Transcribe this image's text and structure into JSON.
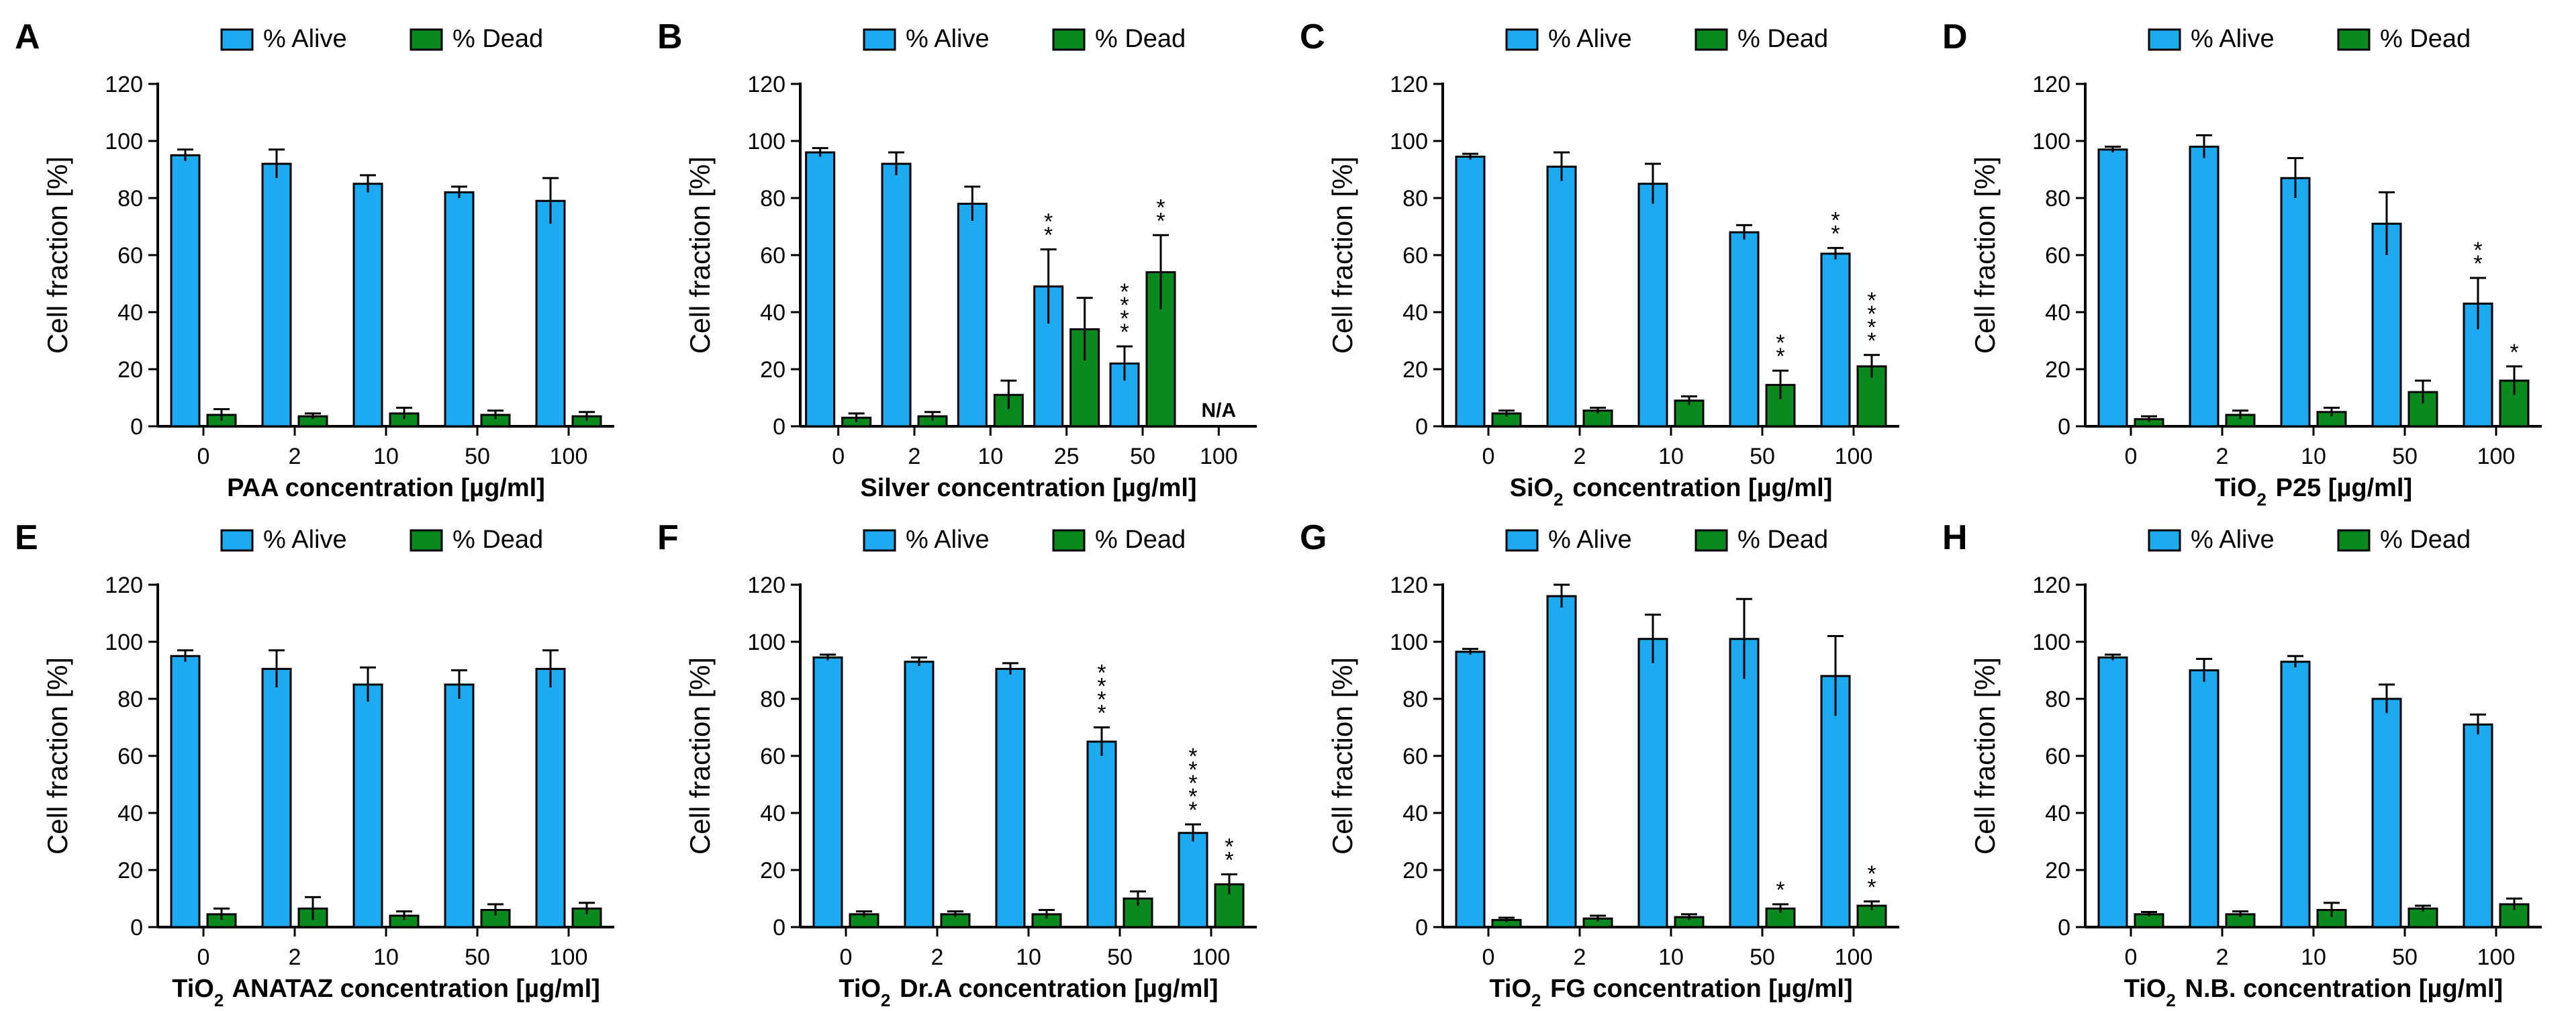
{
  "colors": {
    "alive": "#1EAAF1",
    "dead": "#0A8A1E",
    "stroke": "#000000"
  },
  "legend": {
    "alive": "% Alive",
    "dead": "% Dead"
  },
  "chart_data": [
    {
      "type": "bar",
      "letter": "A",
      "ylabel": "Cell fraction [%]",
      "xlabel": "PAA concentration [µg/ml]",
      "ylim": [
        0,
        120
      ],
      "yticks": [
        0,
        20,
        40,
        60,
        80,
        100,
        120
      ],
      "categories": [
        "0",
        "2",
        "10",
        "50",
        "100"
      ],
      "series": [
        {
          "name": "% Alive",
          "values": [
            95,
            92,
            85,
            82,
            79
          ],
          "errors": [
            2,
            5,
            3,
            2,
            8
          ]
        },
        {
          "name": "% Dead",
          "values": [
            4,
            3.5,
            4.5,
            4,
            3.5
          ],
          "errors": [
            2,
            1,
            2,
            1.5,
            1.5
          ]
        }
      ],
      "significance": [
        [
          "",
          "",
          "",
          "",
          ""
        ],
        [
          "",
          "",
          "",
          "",
          ""
        ]
      ],
      "annotations": []
    },
    {
      "type": "bar",
      "letter": "B",
      "ylabel": "Cell fraction [%]",
      "xlabel": "Silver concentration [µg/ml]",
      "ylim": [
        0,
        120
      ],
      "yticks": [
        0,
        20,
        40,
        60,
        80,
        100,
        120
      ],
      "categories": [
        "0",
        "2",
        "10",
        "25",
        "50",
        "100"
      ],
      "series": [
        {
          "name": "% Alive",
          "values": [
            96,
            92,
            78,
            49,
            22,
            null
          ],
          "errors": [
            1.5,
            4,
            6,
            13,
            6,
            null
          ]
        },
        {
          "name": "% Dead",
          "values": [
            3,
            3.5,
            11,
            34,
            54,
            null
          ],
          "errors": [
            1.5,
            1.5,
            5,
            11,
            13,
            null
          ]
        }
      ],
      "significance": [
        [
          "",
          "",
          "",
          "**",
          "****",
          ""
        ],
        [
          "",
          "",
          "",
          "",
          "**",
          ""
        ]
      ],
      "annotations": [
        {
          "category": "100",
          "text": "N/A"
        }
      ]
    },
    {
      "type": "bar",
      "letter": "C",
      "ylabel": "Cell fraction [%]",
      "xlabel": "SiO₂ concentration [µg/ml]",
      "ylim": [
        0,
        120
      ],
      "yticks": [
        0,
        20,
        40,
        60,
        80,
        100,
        120
      ],
      "categories": [
        "0",
        "2",
        "10",
        "50",
        "100"
      ],
      "series": [
        {
          "name": "% Alive",
          "values": [
            94.5,
            91,
            85,
            68,
            60.5
          ],
          "errors": [
            1,
            5,
            7,
            2.5,
            2
          ]
        },
        {
          "name": "% Dead",
          "values": [
            4.5,
            5.5,
            9,
            14.5,
            21
          ],
          "errors": [
            1,
            1,
            1.5,
            5,
            4
          ]
        }
      ],
      "significance": [
        [
          "",
          "",
          "",
          "",
          "**"
        ],
        [
          "",
          "",
          "",
          "**",
          "****"
        ]
      ],
      "annotations": []
    },
    {
      "type": "bar",
      "letter": "D",
      "ylabel": "Cell fraction [%]",
      "xlabel": "TiO₂ P25 [µg/ml]",
      "ylim": [
        0,
        120
      ],
      "yticks": [
        0,
        20,
        40,
        60,
        80,
        100,
        120
      ],
      "categories": [
        "0",
        "2",
        "10",
        "50",
        "100"
      ],
      "series": [
        {
          "name": "% Alive",
          "values": [
            97,
            98,
            87,
            71,
            43
          ],
          "errors": [
            1,
            4,
            7,
            11,
            9
          ]
        },
        {
          "name": "% Dead",
          "values": [
            2.5,
            4,
            5,
            12,
            16
          ],
          "errors": [
            1,
            1.5,
            1.5,
            4,
            5
          ]
        }
      ],
      "significance": [
        [
          "",
          "",
          "",
          "",
          "**"
        ],
        [
          "",
          "",
          "",
          "",
          "*"
        ]
      ],
      "annotations": []
    },
    {
      "type": "bar",
      "letter": "E",
      "ylabel": "Cell fraction [%]",
      "xlabel": "TiO₂ ANATAZ concentration [µg/ml]",
      "ylim": [
        0,
        120
      ],
      "yticks": [
        0,
        20,
        40,
        60,
        80,
        100,
        120
      ],
      "categories": [
        "0",
        "2",
        "10",
        "50",
        "100"
      ],
      "series": [
        {
          "name": "% Alive",
          "values": [
            95,
            90.5,
            85,
            85,
            90.5
          ],
          "errors": [
            2,
            6.5,
            6,
            5,
            6.5
          ]
        },
        {
          "name": "% Dead",
          "values": [
            4.5,
            6.5,
            4,
            6,
            6.5
          ],
          "errors": [
            2,
            4,
            1.5,
            2,
            2
          ]
        }
      ],
      "significance": [
        [
          "",
          "",
          "",
          "",
          ""
        ],
        [
          "",
          "",
          "",
          "",
          ""
        ]
      ],
      "annotations": []
    },
    {
      "type": "bar",
      "letter": "F",
      "ylabel": "Cell fraction [%]",
      "xlabel": "TiO₂ Dr.A concentration [µg/ml]",
      "ylim": [
        0,
        120
      ],
      "yticks": [
        0,
        20,
        40,
        60,
        80,
        100,
        120
      ],
      "categories": [
        "0",
        "2",
        "10",
        "50",
        "100"
      ],
      "series": [
        {
          "name": "% Alive",
          "values": [
            94.5,
            93,
            90.5,
            65,
            33
          ],
          "errors": [
            1,
            1.5,
            2,
            5,
            3
          ]
        },
        {
          "name": "% Dead",
          "values": [
            4.5,
            4.5,
            4.5,
            10,
            15
          ],
          "errors": [
            1,
            1,
            1.5,
            2.5,
            3.5
          ]
        }
      ],
      "significance": [
        [
          "",
          "",
          "",
          "****",
          "*****"
        ],
        [
          "",
          "",
          "",
          "",
          "**"
        ]
      ],
      "annotations": []
    },
    {
      "type": "bar",
      "letter": "G",
      "ylabel": "Cell fraction [%]",
      "xlabel": "TiO₂ FG concentration [µg/ml]",
      "ylim": [
        0,
        120
      ],
      "yticks": [
        0,
        20,
        40,
        60,
        80,
        100,
        120
      ],
      "categories": [
        "0",
        "2",
        "10",
        "50",
        "100"
      ],
      "series": [
        {
          "name": "% Alive",
          "values": [
            96.5,
            116,
            101,
            101,
            88
          ],
          "errors": [
            1,
            4,
            8.5,
            14,
            14
          ]
        },
        {
          "name": "% Dead",
          "values": [
            2.5,
            3,
            3.5,
            6.5,
            7.5
          ],
          "errors": [
            0.8,
            1,
            1,
            1.5,
            1.5
          ]
        }
      ],
      "significance": [
        [
          "",
          "",
          "",
          "",
          ""
        ],
        [
          "",
          "",
          "",
          "*",
          "**"
        ]
      ],
      "annotations": []
    },
    {
      "type": "bar",
      "letter": "H",
      "ylabel": "Cell fraction [%]",
      "xlabel": "TiO₂ N.B. concentration [µg/ml]",
      "ylim": [
        0,
        120
      ],
      "yticks": [
        0,
        20,
        40,
        60,
        80,
        100,
        120
      ],
      "categories": [
        "0",
        "2",
        "10",
        "50",
        "100"
      ],
      "series": [
        {
          "name": "% Alive",
          "values": [
            94.5,
            90,
            93,
            80,
            71
          ],
          "errors": [
            1,
            4,
            2,
            5,
            3.5
          ]
        },
        {
          "name": "% Dead",
          "values": [
            4.5,
            4.5,
            6,
            6.5,
            8
          ],
          "errors": [
            0.8,
            1,
            2.5,
            1,
            2
          ]
        }
      ],
      "significance": [
        [
          "",
          "",
          "",
          "",
          ""
        ],
        [
          "",
          "",
          "",
          "",
          ""
        ]
      ],
      "annotations": []
    }
  ]
}
